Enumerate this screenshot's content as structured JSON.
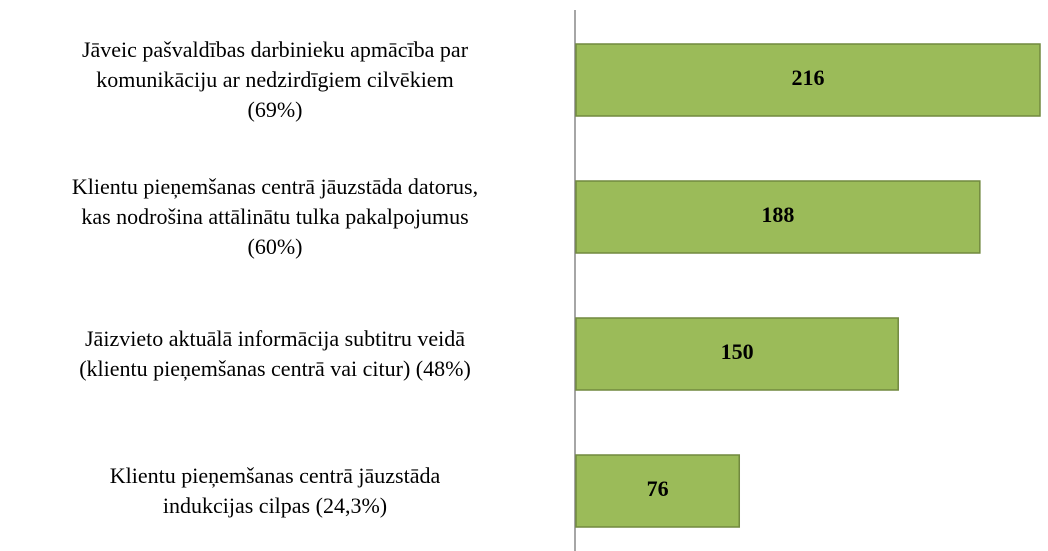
{
  "chart_data": {
    "type": "bar",
    "orientation": "horizontal",
    "categories": [
      "Jāveic pašvaldības darbinieku apmācība par\nkomunikāciju ar nedzirdīgiem cilvēkiem\n(69%)",
      "Klientu pieņemšanas centrā jāuzstāda datorus,\nkas nodrošina attālinātu tulka pakalpojumus\n(60%)",
      "Jāizvieto aktuālā informācija subtitru veidā\n(klientu pieņemšanas centrā vai citur) (48%)",
      "Klientu pieņemšanas centrā jāuzstāda\nindukcijas cilpas (24,3%)"
    ],
    "values": [
      216,
      188,
      150,
      76
    ],
    "color": "#9bbb59",
    "edge_color": "#71893f"
  }
}
